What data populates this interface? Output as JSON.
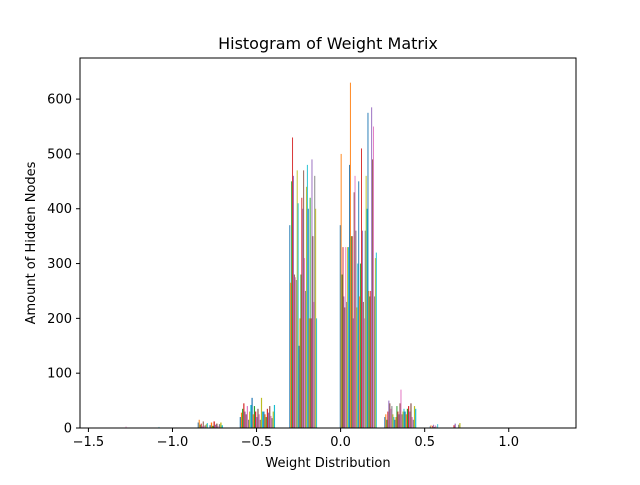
{
  "chart_data": {
    "type": "bar",
    "subtype": "histogram",
    "title": "Histogram of Weight Matrix",
    "xlabel": "Weight Distribution",
    "ylabel": "Amount of Hidden Nodes",
    "xlim": [
      -1.55,
      1.4
    ],
    "ylim": [
      0,
      675
    ],
    "x_ticks": [
      -1.5,
      -1.0,
      -0.5,
      0.0,
      0.5,
      1.0
    ],
    "x_tick_labels": [
      "−1.5",
      "−1.0",
      "−0.5",
      "0.0",
      "0.5",
      "1.0"
    ],
    "y_ticks": [
      0,
      100,
      200,
      300,
      400,
      500,
      600
    ],
    "y_tick_labels": [
      "0",
      "100",
      "200",
      "300",
      "400",
      "500",
      "600"
    ],
    "grid": false,
    "legend": "none",
    "colors": [
      "#1f77b4",
      "#ff7f0e",
      "#2ca02c",
      "#d62728",
      "#9467bd",
      "#8c564b",
      "#e377c2",
      "#7f7f7f",
      "#bcbd22",
      "#17becf"
    ],
    "bins": [
      {
        "x0": -1.29,
        "x1": -1.27,
        "values": [
          0,
          0,
          0,
          0,
          0,
          0,
          3,
          0,
          0,
          0
        ]
      },
      {
        "x0": -1.1,
        "x1": -1.08,
        "values": [
          0,
          0,
          0,
          0,
          0,
          0,
          0,
          0,
          0,
          2
        ]
      },
      {
        "x0": -0.85,
        "x1": -0.79,
        "values": [
          10,
          15,
          6,
          8,
          3,
          12,
          4,
          5,
          7,
          9
        ]
      },
      {
        "x0": -0.78,
        "x1": -0.7,
        "values": [
          5,
          10,
          4,
          12,
          6,
          8,
          3,
          7,
          10,
          5
        ]
      },
      {
        "x0": -0.6,
        "x1": -0.53,
        "values": [
          20,
          28,
          35,
          45,
          30,
          25,
          40,
          15,
          30,
          42
        ]
      },
      {
        "x0": -0.53,
        "x1": -0.46,
        "values": [
          55,
          25,
          40,
          30,
          20,
          35,
          25,
          15,
          55,
          30
        ]
      },
      {
        "x0": -0.46,
        "x1": -0.39,
        "values": [
          30,
          25,
          20,
          35,
          28,
          40,
          22,
          18,
          30,
          42
        ]
      },
      {
        "x0": -0.305,
        "x1": -0.25,
        "values": [
          370,
          265,
          450,
          530,
          460,
          280,
          275,
          270,
          470,
          410
        ]
      },
      {
        "x0": -0.25,
        "x1": -0.195,
        "values": [
          150,
          200,
          280,
          420,
          400,
          470,
          310,
          250,
          440,
          480
        ]
      },
      {
        "x0": -0.195,
        "x1": -0.14,
        "values": [
          400,
          200,
          420,
          200,
          490,
          350,
          230,
          460,
          400,
          200
        ]
      },
      {
        "x0": -0.005,
        "x1": 0.05,
        "values": [
          370,
          500,
          280,
          330,
          240,
          220,
          330,
          230,
          330,
          330
        ]
      },
      {
        "x0": 0.05,
        "x1": 0.105,
        "values": [
          480,
          630,
          350,
          350,
          200,
          430,
          460,
          360,
          220,
          300
        ]
      },
      {
        "x0": 0.105,
        "x1": 0.16,
        "values": [
          450,
          240,
          300,
          510,
          360,
          230,
          200,
          360,
          460,
          400
        ]
      },
      {
        "x0": 0.16,
        "x1": 0.215,
        "values": [
          575,
          250,
          240,
          250,
          585,
          490,
          550,
          240,
          310,
          320
        ]
      },
      {
        "x0": 0.26,
        "x1": 0.32,
        "values": [
          20,
          25,
          15,
          30,
          50,
          45,
          35,
          40,
          25,
          20
        ]
      },
      {
        "x0": 0.32,
        "x1": 0.38,
        "values": [
          15,
          20,
          40,
          30,
          25,
          45,
          70,
          25,
          30,
          35
        ]
      },
      {
        "x0": 0.38,
        "x1": 0.45,
        "values": [
          30,
          25,
          35,
          40,
          30,
          45,
          20,
          15,
          40,
          35
        ]
      },
      {
        "x0": 0.53,
        "x1": 0.58,
        "values": [
          3,
          5,
          0,
          4,
          6,
          2,
          5,
          3,
          0,
          7
        ]
      },
      {
        "x0": 0.65,
        "x1": 0.72,
        "values": [
          0,
          0,
          0,
          5,
          8,
          0,
          0,
          6,
          9,
          0
        ]
      }
    ]
  }
}
